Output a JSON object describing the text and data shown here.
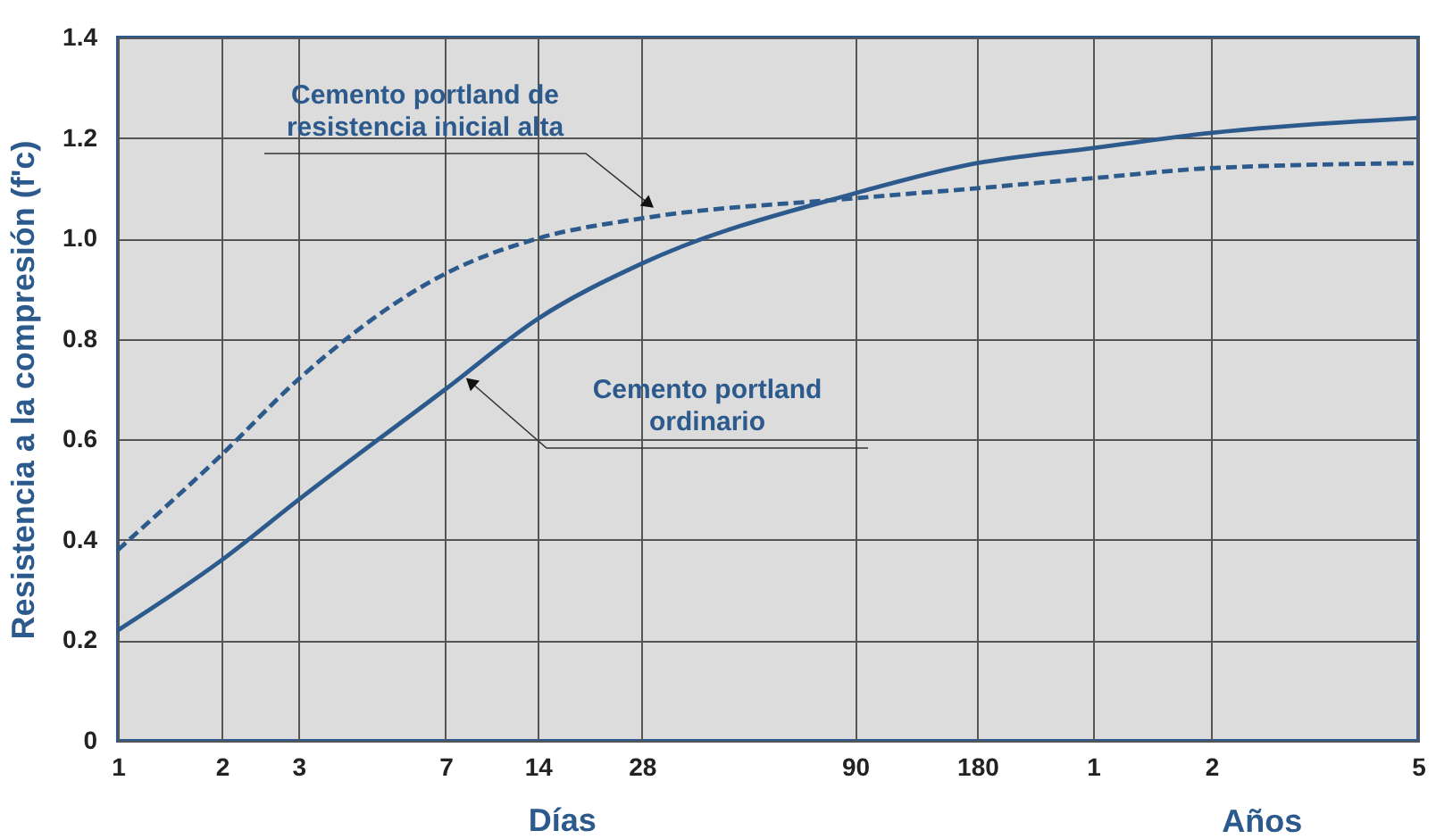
{
  "chart_data": {
    "type": "line",
    "xlabel": "Días",
    "ylabel": "Resistencia a la compresión (f'c)",
    "annotations": [
      "Años"
    ],
    "categories": [
      "1",
      "2",
      "3",
      "7",
      "14",
      "28",
      "90",
      "180",
      "1",
      "2",
      "5"
    ],
    "series": [
      {
        "name": "Cemento portland ordinario",
        "color": "#2c5a8c",
        "line_style": "solid",
        "values": [
          0.22,
          0.36,
          0.48,
          0.7,
          0.84,
          0.95,
          1.09,
          1.15,
          1.18,
          1.21,
          1.24
        ]
      },
      {
        "name": "Cemento portland de resistencia inicial alta",
        "color": "#2c5a8c",
        "line_style": "dashed",
        "values": [
          0.38,
          0.57,
          0.72,
          0.93,
          1.0,
          1.04,
          1.08,
          1.1,
          1.12,
          1.14,
          1.15
        ]
      }
    ],
    "ylim": [
      0,
      1.4
    ],
    "yticks": [
      0,
      0.2,
      0.4,
      0.6,
      0.8,
      {
        "value": 1,
        "label": "1.0"
      },
      1.2,
      1.4
    ],
    "grid": true,
    "marker": "none"
  }
}
